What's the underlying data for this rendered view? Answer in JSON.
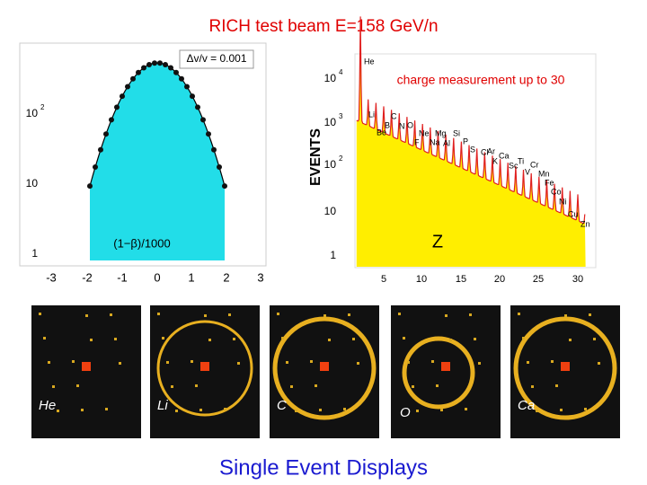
{
  "title": "RICH test beam E=158 GeV/n",
  "left_plot": {
    "annotation": "Δv/v = 0.001",
    "x_label": "(1−β)/1000",
    "x_ticks": [
      "-3",
      "-2",
      "-1",
      "0",
      "1",
      "2",
      "3"
    ],
    "y_ticks": [
      {
        "base": "10",
        "exp": "2"
      },
      {
        "base": "10",
        "exp": ""
      },
      {
        "base": "1",
        "exp": ""
      }
    ]
  },
  "right_plot": {
    "y_label": "EVENTS",
    "x_label": "Z",
    "annotation": "charge measurement up to 30",
    "x_ticks": [
      "5",
      "10",
      "15",
      "20",
      "25",
      "30"
    ],
    "y_ticks": [
      {
        "base": "10",
        "exp": "4"
      },
      {
        "base": "10",
        "exp": "3"
      },
      {
        "base": "10",
        "exp": "2"
      },
      {
        "base": "10",
        "exp": ""
      },
      {
        "base": "1",
        "exp": ""
      }
    ],
    "elements": [
      "He",
      "Li",
      "Be",
      "B",
      "C",
      "N",
      "O",
      "F",
      "Ne",
      "Na",
      "Mg",
      "Al",
      "Si",
      "P",
      "S",
      "Cl",
      "Ar",
      "K",
      "Ca",
      "Sc",
      "Ti",
      "V",
      "Cr",
      "Mn",
      "Fe",
      "Co",
      "Ni",
      "Cu",
      "Zn"
    ]
  },
  "events": {
    "title": "Single Event Displays",
    "labels": [
      "He",
      "Li",
      "C",
      "O",
      "Ca"
    ]
  }
}
